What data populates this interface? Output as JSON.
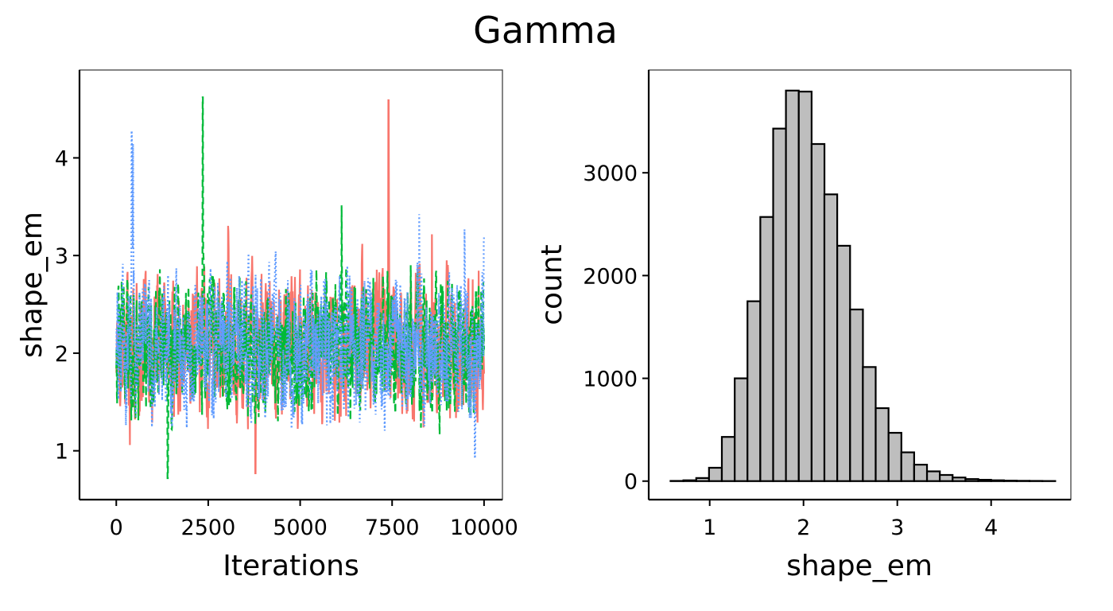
{
  "figure": {
    "title": "Gamma"
  },
  "colors": {
    "chain_1": "#F8766D",
    "chain_2": "#00BA38",
    "chain_3": "#619CFF",
    "bar_fill": "#BEBEBE",
    "bar_stroke": "#000000"
  },
  "chart_data": [
    {
      "type": "line",
      "xlabel": "Iterations",
      "ylabel": "shape_em",
      "xlim": [
        -1000,
        10500
      ],
      "ylim": [
        0.5,
        4.9
      ],
      "x_ticks": [
        0,
        2500,
        5000,
        7500,
        10000
      ],
      "x_tick_labels": [
        "0",
        "2500",
        "5000",
        "7500",
        "10000"
      ],
      "y_ticks": [
        1,
        2,
        3,
        4
      ],
      "y_tick_labels": [
        "1",
        "2",
        "3",
        "4"
      ],
      "grid": false,
      "legend": "none",
      "n_iterations": 10000,
      "series": [
        {
          "chain": 1,
          "line_style": "solid",
          "mean": 2.07,
          "min": 0.77,
          "max": 4.59,
          "min_at": 3780,
          "max_at": 7400
        },
        {
          "chain": 2,
          "line_style": "dashed",
          "mean": 2.07,
          "min": 0.72,
          "max": 4.62,
          "min_at": 1400,
          "max_at": 2350
        },
        {
          "chain": 3,
          "line_style": "dotted",
          "mean": 2.07,
          "min": 0.94,
          "max": 4.26,
          "min_at": 9750,
          "max_at": 420
        }
      ]
    },
    {
      "type": "bar",
      "subtype": "histogram",
      "xlabel": "shape_em",
      "ylabel": "count",
      "xlim": [
        0.35,
        4.85
      ],
      "ylim": [
        -180,
        4000
      ],
      "x_ticks": [
        1,
        2,
        3,
        4
      ],
      "x_tick_labels": [
        "1",
        "2",
        "3",
        "4"
      ],
      "y_ticks": [
        0,
        1000,
        2000,
        3000
      ],
      "y_tick_labels": [
        "0",
        "1000",
        "2000",
        "3000"
      ],
      "grid": false,
      "legend": "none",
      "bin_width": 0.1367,
      "bin_centers": [
        0.651,
        0.788,
        0.925,
        1.061,
        1.198,
        1.335,
        1.471,
        1.608,
        1.745,
        1.881,
        2.018,
        2.155,
        2.291,
        2.428,
        2.565,
        2.701,
        2.838,
        2.975,
        3.111,
        3.248,
        3.385,
        3.521,
        3.658,
        3.795,
        3.931,
        4.068,
        4.205,
        4.341,
        4.478,
        4.615
      ],
      "values": [
        2,
        8,
        30,
        130,
        430,
        1000,
        1750,
        2570,
        3430,
        3800,
        3790,
        3280,
        2790,
        2290,
        1670,
        1110,
        710,
        470,
        280,
        160,
        95,
        60,
        35,
        20,
        13,
        8,
        5,
        3,
        2,
        1
      ]
    }
  ]
}
